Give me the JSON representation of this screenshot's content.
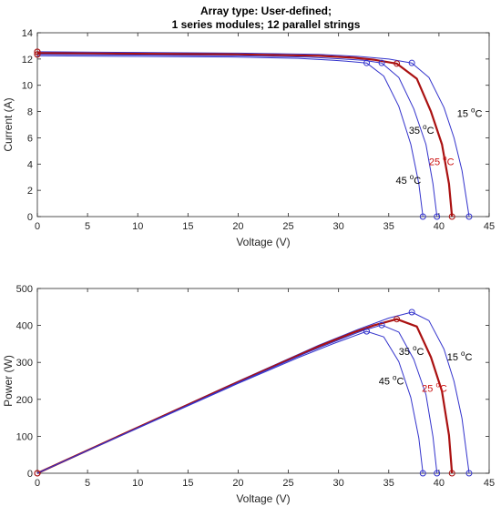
{
  "chart_data": [
    {
      "type": "line",
      "title_lines": [
        "Array type: User-defined;",
        "1 series modules; 12 parallel strings"
      ],
      "xlabel": "Voltage (V)",
      "ylabel": "Current (A)",
      "xlim": [
        0,
        45
      ],
      "ylim": [
        0,
        14
      ],
      "xticks": [
        0,
        5,
        10,
        15,
        20,
        25,
        30,
        35,
        40,
        45
      ],
      "yticks": [
        0,
        2,
        4,
        6,
        8,
        10,
        12,
        14
      ],
      "grid": false,
      "series": [
        {
          "name": "15 °C",
          "color": "#3333cc",
          "x": [
            0,
            10,
            20,
            28,
            32,
            35,
            37.3,
            39,
            40.5,
            41.5,
            42.3,
            43.0
          ],
          "y": [
            12.55,
            12.5,
            12.45,
            12.35,
            12.2,
            12.0,
            11.7,
            10.6,
            8.3,
            6.0,
            3.5,
            0
          ]
        },
        {
          "name": "25 °C",
          "color": "#aa1111",
          "x": [
            0,
            10,
            20,
            28,
            31.5,
            33.5,
            35.8,
            37.8,
            39.2,
            40.3,
            41.0,
            41.3
          ],
          "y": [
            12.45,
            12.4,
            12.35,
            12.25,
            12.1,
            11.95,
            11.65,
            10.5,
            8.0,
            5.5,
            2.5,
            0
          ]
        },
        {
          "name": "35 °C",
          "color": "#3333cc",
          "x": [
            0,
            10,
            20,
            27,
            30.5,
            32.5,
            34.3,
            36.0,
            37.5,
            38.7,
            39.4,
            39.8
          ],
          "y": [
            12.35,
            12.3,
            12.25,
            12.15,
            12.0,
            11.9,
            11.7,
            10.6,
            8.2,
            5.5,
            2.5,
            0
          ]
        },
        {
          "name": "45 °C",
          "color": "#3333cc",
          "x": [
            0,
            10,
            20,
            26,
            29.5,
            31.3,
            32.8,
            34.5,
            36.0,
            37.2,
            38.0,
            38.4
          ],
          "y": [
            12.25,
            12.2,
            12.15,
            12.05,
            11.9,
            11.8,
            11.7,
            10.7,
            8.4,
            5.5,
            2.5,
            0
          ]
        }
      ],
      "mpp": [
        {
          "x": 37.3,
          "y": 11.7,
          "color": "#3333cc"
        },
        {
          "x": 35.8,
          "y": 11.65,
          "color": "#aa1111"
        },
        {
          "x": 34.3,
          "y": 11.7,
          "color": "#3333cc"
        },
        {
          "x": 32.8,
          "y": 11.7,
          "color": "#3333cc"
        }
      ],
      "voc": [
        {
          "x": 43.0,
          "y": 0,
          "color": "#3333cc"
        },
        {
          "x": 41.3,
          "y": 0,
          "color": "#aa1111"
        },
        {
          "x": 39.8,
          "y": 0,
          "color": "#3333cc"
        },
        {
          "x": 38.4,
          "y": 0,
          "color": "#3333cc"
        }
      ],
      "isc": [
        {
          "x": 0,
          "y": 12.55,
          "color": "#aa1111"
        },
        {
          "x": 0,
          "y": 12.35,
          "color": "#aa1111"
        }
      ],
      "annotations": [
        {
          "text": "15",
          "sup": "o",
          "unit": "C",
          "x": 41.8,
          "y": 7.6,
          "color": "#000000"
        },
        {
          "text": "25",
          "sup": "o",
          "unit": "C",
          "x": 39.0,
          "y": 3.9,
          "color": "#cc1111"
        },
        {
          "text": "35",
          "sup": "o",
          "unit": "C",
          "x": 37.0,
          "y": 6.3,
          "color": "#000000"
        },
        {
          "text": "45",
          "sup": "o",
          "unit": "C",
          "x": 35.7,
          "y": 2.5,
          "color": "#000000"
        }
      ]
    },
    {
      "type": "line",
      "xlabel": "Voltage (V)",
      "ylabel": "Power (W)",
      "xlim": [
        0,
        45
      ],
      "ylim": [
        0,
        500
      ],
      "xticks": [
        0,
        5,
        10,
        15,
        20,
        25,
        30,
        35,
        40,
        45
      ],
      "yticks": [
        0,
        100,
        200,
        300,
        400,
        500
      ],
      "grid": false,
      "series": [
        {
          "name": "15 °C",
          "color": "#3333cc",
          "x": [
            0,
            10,
            20,
            28,
            32,
            35,
            37.3,
            39,
            40.5,
            41.5,
            42.3,
            43.0
          ],
          "y": [
            0,
            125,
            249,
            346,
            390,
            420,
            436,
            413,
            336,
            249,
            148,
            0
          ]
        },
        {
          "name": "25 °C",
          "color": "#aa1111",
          "x": [
            0,
            10,
            20,
            28,
            31.5,
            33.5,
            35.8,
            37.8,
            39.2,
            40.3,
            41.0,
            41.3
          ],
          "y": [
            0,
            124,
            247,
            343,
            381,
            400,
            417,
            397,
            314,
            222,
            103,
            0
          ]
        },
        {
          "name": "35 °C",
          "color": "#3333cc",
          "x": [
            0,
            10,
            20,
            27,
            30.5,
            32.5,
            34.3,
            36.0,
            37.5,
            38.7,
            39.4,
            39.8
          ],
          "y": [
            0,
            123,
            245,
            328,
            366,
            387,
            401,
            382,
            308,
            213,
            99,
            0
          ]
        },
        {
          "name": "45 °C",
          "color": "#3333cc",
          "x": [
            0,
            10,
            20,
            26,
            29.5,
            31.3,
            32.8,
            34.5,
            36.0,
            37.2,
            38.0,
            38.4
          ],
          "y": [
            0,
            122,
            243,
            313,
            351,
            369,
            384,
            369,
            302,
            205,
            95,
            0
          ]
        }
      ],
      "mpp": [
        {
          "x": 37.3,
          "y": 436,
          "color": "#3333cc"
        },
        {
          "x": 35.8,
          "y": 417,
          "color": "#aa1111"
        },
        {
          "x": 34.3,
          "y": 401,
          "color": "#3333cc"
        },
        {
          "x": 32.8,
          "y": 384,
          "color": "#3333cc"
        }
      ],
      "voc": [
        {
          "x": 43.0,
          "y": 0,
          "color": "#3333cc"
        },
        {
          "x": 41.3,
          "y": 0,
          "color": "#aa1111"
        },
        {
          "x": 39.8,
          "y": 0,
          "color": "#3333cc"
        },
        {
          "x": 38.4,
          "y": 0,
          "color": "#3333cc"
        }
      ],
      "isc": [
        {
          "x": 0,
          "y": 0,
          "color": "#aa1111"
        }
      ],
      "annotations": [
        {
          "text": "15",
          "sup": "o",
          "unit": "C",
          "x": 40.8,
          "y": 305,
          "color": "#000000"
        },
        {
          "text": "25",
          "sup": "o",
          "unit": "C",
          "x": 38.3,
          "y": 220,
          "color": "#cc1111"
        },
        {
          "text": "35",
          "sup": "o",
          "unit": "C",
          "x": 36.0,
          "y": 320,
          "color": "#000000"
        },
        {
          "text": "45",
          "sup": "o",
          "unit": "C",
          "x": 34.0,
          "y": 240,
          "color": "#000000"
        }
      ]
    }
  ]
}
